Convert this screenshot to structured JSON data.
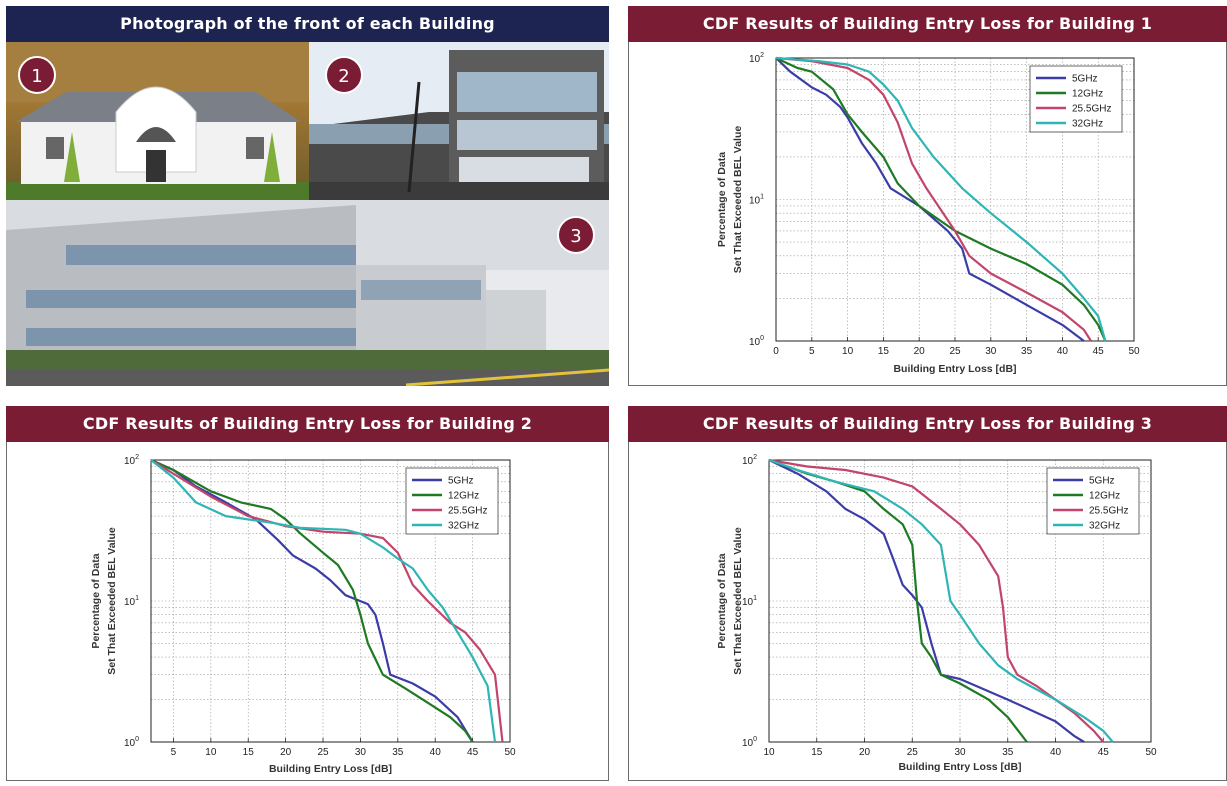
{
  "photos": {
    "title": "Photograph of the front of each Building",
    "badges": [
      "1",
      "2",
      "3"
    ]
  },
  "legend_colors": {
    "5GHz": "#3c3ca8",
    "12GHz": "#1e7a23",
    "25.5GHz": "#c2456b",
    "32GHz": "#2fb5b5"
  },
  "chart_data": [
    {
      "type": "line",
      "title": "CDF Results of Building Entry Loss for Building 1",
      "xlabel": "Building Entry Loss [dB]",
      "ylabel": [
        "Percentage of Data",
        "Set That Exceeded BEL Value"
      ],
      "xlim": [
        0,
        50
      ],
      "ylim": [
        1,
        100
      ],
      "yscale": "log",
      "grid": true,
      "legend": "top-right",
      "xticks": [
        "0",
        "5",
        "10",
        "15",
        "20",
        "25",
        "30",
        "35",
        "40",
        "45",
        "50"
      ],
      "yticks": [
        {
          "base": "10",
          "exp": "0"
        },
        {
          "base": "10",
          "exp": "1"
        },
        {
          "base": "10",
          "exp": "2"
        }
      ],
      "series": [
        {
          "name": "5GHz",
          "color": "#3c3ca8",
          "points": [
            [
              0,
              100
            ],
            [
              2,
              80
            ],
            [
              5,
              62
            ],
            [
              7,
              55
            ],
            [
              9,
              45
            ],
            [
              10,
              38
            ],
            [
              12,
              25
            ],
            [
              14,
              18
            ],
            [
              16,
              12
            ],
            [
              20,
              9
            ],
            [
              24,
              6
            ],
            [
              26,
              4.5
            ],
            [
              27,
              3
            ],
            [
              30,
              2.5
            ],
            [
              35,
              1.8
            ],
            [
              40,
              1.3
            ],
            [
              43,
              1
            ]
          ]
        },
        {
          "name": "12GHz",
          "color": "#1e7a23",
          "points": [
            [
              0,
              100
            ],
            [
              3,
              85
            ],
            [
              5,
              80
            ],
            [
              8,
              60
            ],
            [
              10,
              40
            ],
            [
              12,
              30
            ],
            [
              15,
              20
            ],
            [
              17,
              13
            ],
            [
              20,
              9
            ],
            [
              25,
              6
            ],
            [
              30,
              4.5
            ],
            [
              35,
              3.5
            ],
            [
              40,
              2.5
            ],
            [
              43,
              1.8
            ],
            [
              45,
              1.3
            ],
            [
              46,
              1
            ]
          ]
        },
        {
          "name": "25.5GHz",
          "color": "#c2456b",
          "points": [
            [
              0,
              100
            ],
            [
              5,
              95
            ],
            [
              10,
              85
            ],
            [
              13,
              70
            ],
            [
              15,
              55
            ],
            [
              17,
              35
            ],
            [
              19,
              18
            ],
            [
              21,
              12
            ],
            [
              25,
              6
            ],
            [
              27,
              4
            ],
            [
              30,
              3
            ],
            [
              35,
              2.2
            ],
            [
              40,
              1.6
            ],
            [
              43,
              1.2
            ],
            [
              44,
              1
            ]
          ]
        },
        {
          "name": "32GHz",
          "color": "#2fb5b5",
          "points": [
            [
              0,
              100
            ],
            [
              6,
              95
            ],
            [
              10,
              90
            ],
            [
              13,
              80
            ],
            [
              15,
              65
            ],
            [
              17,
              50
            ],
            [
              19,
              32
            ],
            [
              22,
              20
            ],
            [
              26,
              12
            ],
            [
              30,
              8
            ],
            [
              35,
              5
            ],
            [
              40,
              3
            ],
            [
              43,
              2
            ],
            [
              45,
              1.5
            ],
            [
              46,
              1
            ]
          ]
        }
      ]
    },
    {
      "type": "line",
      "title": "CDF Results of Building Entry Loss for Building 2",
      "xlabel": "Building Entry Loss [dB]",
      "ylabel": [
        "Percentage of Data",
        "Set That Exceeded BEL Value"
      ],
      "xlim": [
        2,
        50
      ],
      "ylim": [
        1,
        100
      ],
      "yscale": "log",
      "grid": true,
      "legend": "top-right",
      "xticks": [
        "5",
        "10",
        "15",
        "20",
        "25",
        "30",
        "35",
        "40",
        "45",
        "50"
      ],
      "xtick_values": [
        5,
        10,
        15,
        20,
        25,
        30,
        35,
        40,
        45,
        50
      ],
      "yticks": [
        {
          "base": "10",
          "exp": "0"
        },
        {
          "base": "10",
          "exp": "1"
        },
        {
          "base": "10",
          "exp": "2"
        }
      ],
      "series": [
        {
          "name": "5GHz",
          "color": "#3c3ca8",
          "points": [
            [
              2,
              100
            ],
            [
              5,
              85
            ],
            [
              8,
              65
            ],
            [
              12,
              50
            ],
            [
              16,
              38
            ],
            [
              19,
              27
            ],
            [
              21,
              21
            ],
            [
              24,
              17
            ],
            [
              26,
              14
            ],
            [
              28,
              11
            ],
            [
              31,
              9.5
            ],
            [
              32,
              8
            ],
            [
              33,
              5
            ],
            [
              34,
              3
            ],
            [
              37,
              2.6
            ],
            [
              40,
              2.1
            ],
            [
              43,
              1.5
            ],
            [
              45,
              1
            ]
          ]
        },
        {
          "name": "12GHz",
          "color": "#1e7a23",
          "points": [
            [
              2,
              100
            ],
            [
              5,
              85
            ],
            [
              10,
              60
            ],
            [
              14,
              50
            ],
            [
              18,
              45
            ],
            [
              20,
              38
            ],
            [
              22,
              30
            ],
            [
              25,
              22
            ],
            [
              27,
              18
            ],
            [
              29,
              12
            ],
            [
              30,
              8
            ],
            [
              31,
              5
            ],
            [
              33,
              3
            ],
            [
              36,
              2.4
            ],
            [
              39,
              1.9
            ],
            [
              42,
              1.5
            ],
            [
              44,
              1.2
            ],
            [
              45,
              1
            ]
          ]
        },
        {
          "name": "25.5GHz",
          "color": "#c2456b",
          "points": [
            [
              2,
              100
            ],
            [
              5,
              80
            ],
            [
              10,
              55
            ],
            [
              15,
              40
            ],
            [
              20,
              34
            ],
            [
              25,
              31
            ],
            [
              30,
              30
            ],
            [
              33,
              28
            ],
            [
              35,
              22
            ],
            [
              36,
              17
            ],
            [
              37,
              13
            ],
            [
              39,
              10
            ],
            [
              42,
              7
            ],
            [
              44,
              6
            ],
            [
              46,
              4.5
            ],
            [
              48,
              3
            ],
            [
              49,
              1
            ]
          ]
        },
        {
          "name": "32GHz",
          "color": "#2fb5b5",
          "points": [
            [
              2,
              100
            ],
            [
              5,
              75
            ],
            [
              8,
              50
            ],
            [
              12,
              40
            ],
            [
              18,
              36
            ],
            [
              22,
              33
            ],
            [
              28,
              32
            ],
            [
              30,
              30
            ],
            [
              33,
              24
            ],
            [
              35,
              20
            ],
            [
              37,
              17
            ],
            [
              39,
              12
            ],
            [
              41,
              9
            ],
            [
              43,
              6
            ],
            [
              45,
              4
            ],
            [
              47,
              2.5
            ],
            [
              48,
              1
            ]
          ]
        }
      ]
    },
    {
      "type": "line",
      "title": "CDF Results of Building Entry Loss for Building 3",
      "xlabel": "Building Entry Loss [dB]",
      "ylabel": [
        "Percentage of Data",
        "Set That Exceeded BEL Value"
      ],
      "xlim": [
        10,
        50
      ],
      "ylim": [
        1,
        100
      ],
      "yscale": "log",
      "grid": true,
      "legend": "top-right",
      "xticks": [
        "10",
        "15",
        "20",
        "25",
        "30",
        "35",
        "40",
        "45",
        "50"
      ],
      "yticks": [
        {
          "base": "10",
          "exp": "0"
        },
        {
          "base": "10",
          "exp": "1"
        },
        {
          "base": "10",
          "exp": "2"
        }
      ],
      "series": [
        {
          "name": "5GHz",
          "color": "#3c3ca8",
          "points": [
            [
              10,
              100
            ],
            [
              13,
              80
            ],
            [
              16,
              60
            ],
            [
              18,
              45
            ],
            [
              20,
              38
            ],
            [
              22,
              30
            ],
            [
              23,
              20
            ],
            [
              24,
              13
            ],
            [
              25,
              11
            ],
            [
              26,
              9
            ],
            [
              27,
              5
            ],
            [
              28,
              3
            ],
            [
              30,
              2.8
            ],
            [
              35,
              2
            ],
            [
              40,
              1.4
            ],
            [
              42,
              1.1
            ],
            [
              43,
              1
            ]
          ]
        },
        {
          "name": "12GHz",
          "color": "#1e7a23",
          "points": [
            [
              10,
              100
            ],
            [
              14,
              80
            ],
            [
              17,
              70
            ],
            [
              20,
              60
            ],
            [
              22,
              45
            ],
            [
              24,
              35
            ],
            [
              25,
              25
            ],
            [
              25.5,
              10
            ],
            [
              26,
              5
            ],
            [
              27,
              4
            ],
            [
              28,
              3
            ],
            [
              30,
              2.6
            ],
            [
              33,
              2
            ],
            [
              35,
              1.5
            ],
            [
              37,
              1
            ]
          ]
        },
        {
          "name": "25.5GHz",
          "color": "#c2456b",
          "points": [
            [
              10,
              100
            ],
            [
              14,
              90
            ],
            [
              18,
              85
            ],
            [
              22,
              75
            ],
            [
              25,
              65
            ],
            [
              28,
              45
            ],
            [
              30,
              35
            ],
            [
              32,
              25
            ],
            [
              34,
              15
            ],
            [
              34.5,
              9
            ],
            [
              35,
              4
            ],
            [
              36,
              3
            ],
            [
              38,
              2.5
            ],
            [
              40,
              2
            ],
            [
              42,
              1.6
            ],
            [
              44,
              1.2
            ],
            [
              45,
              1
            ]
          ]
        },
        {
          "name": "32GHz",
          "color": "#2fb5b5",
          "points": [
            [
              10,
              100
            ],
            [
              13,
              85
            ],
            [
              17,
              70
            ],
            [
              21,
              60
            ],
            [
              24,
              45
            ],
            [
              26,
              35
            ],
            [
              28,
              25
            ],
            [
              29,
              10
            ],
            [
              30,
              8
            ],
            [
              32,
              5
            ],
            [
              34,
              3.5
            ],
            [
              36,
              2.8
            ],
            [
              40,
              2
            ],
            [
              43,
              1.5
            ],
            [
              45,
              1.2
            ],
            [
              46,
              1
            ]
          ]
        }
      ]
    }
  ]
}
